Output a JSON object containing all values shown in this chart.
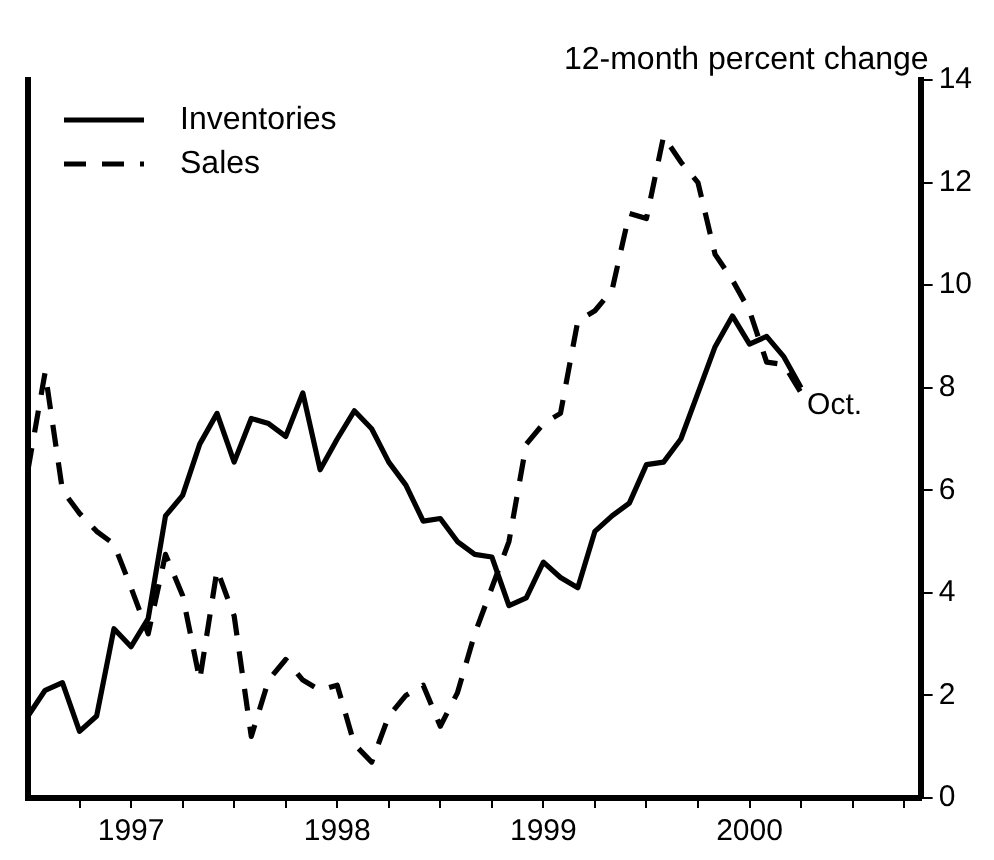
{
  "chart_data": {
    "type": "line",
    "ylabel": "12-month percent change",
    "x": [
      1997.0,
      1997.083,
      1997.167,
      1997.25,
      1997.333,
      1997.417,
      1997.5,
      1997.583,
      1997.667,
      1997.75,
      1997.833,
      1997.917,
      1998.0,
      1998.083,
      1998.167,
      1998.25,
      1998.333,
      1998.417,
      1998.5,
      1998.583,
      1998.667,
      1998.75,
      1998.833,
      1998.917,
      1999.0,
      1999.083,
      1999.167,
      1999.25,
      1999.333,
      1999.417,
      1999.5,
      1999.583,
      1999.667,
      1999.75,
      1999.833,
      1999.917,
      2000.0,
      2000.083,
      2000.167,
      2000.25,
      2000.333,
      2000.417,
      2000.5,
      2000.583,
      2000.667,
      2000.75
    ],
    "series": [
      {
        "name": "Inventories",
        "color": "#000000",
        "line_style": "solid",
        "values": [
          1.6,
          2.1,
          2.25,
          1.3,
          1.6,
          3.3,
          2.95,
          3.5,
          5.5,
          5.9,
          6.9,
          7.5,
          6.55,
          7.4,
          7.3,
          7.05,
          7.9,
          6.4,
          7.0,
          7.55,
          7.2,
          6.55,
          6.1,
          5.4,
          5.45,
          5.0,
          4.75,
          4.7,
          3.75,
          3.9,
          4.6,
          4.3,
          4.1,
          5.2,
          5.5,
          5.75,
          6.5,
          6.55,
          7.0,
          7.9,
          8.8,
          9.4,
          8.85,
          9.0,
          8.6,
          8.0
        ]
      },
      {
        "name": "Sales",
        "color": "#000000",
        "line_style": "dashed",
        "values": [
          6.4,
          8.3,
          6.0,
          5.55,
          5.2,
          4.95,
          4.1,
          3.2,
          4.75,
          3.95,
          2.3,
          4.45,
          3.55,
          1.2,
          2.3,
          2.7,
          2.3,
          2.1,
          2.2,
          1.05,
          0.7,
          1.6,
          2.0,
          2.2,
          1.4,
          2.05,
          3.2,
          4.1,
          5.0,
          6.9,
          7.3,
          7.5,
          9.3,
          9.5,
          9.9,
          11.4,
          11.3,
          12.9,
          12.4,
          12.0,
          10.6,
          10.1,
          9.5,
          8.5,
          8.45,
          7.9
        ]
      }
    ],
    "xlim": [
      1997,
      2001.33
    ],
    "xticks": [
      {
        "value": 1997.25,
        "label": null
      },
      {
        "value": 1997.5,
        "label": "1997"
      },
      {
        "value": 1997.75,
        "label": null
      },
      {
        "value": 1998.0,
        "label": null
      },
      {
        "value": 1998.25,
        "label": null
      },
      {
        "value": 1998.5,
        "label": "1998"
      },
      {
        "value": 1998.75,
        "label": null
      },
      {
        "value": 1999.0,
        "label": null
      },
      {
        "value": 1999.25,
        "label": null
      },
      {
        "value": 1999.5,
        "label": "1999"
      },
      {
        "value": 1999.75,
        "label": null
      },
      {
        "value": 2000.0,
        "label": null
      },
      {
        "value": 2000.25,
        "label": null
      },
      {
        "value": 2000.5,
        "label": "2000"
      },
      {
        "value": 2000.75,
        "label": null
      },
      {
        "value": 2001.0,
        "label": null
      },
      {
        "value": 2001.25,
        "label": null
      }
    ],
    "ylim": [
      0,
      14
    ],
    "yticks": [
      0,
      2,
      4,
      6,
      8,
      10,
      12,
      14
    ],
    "annotations": [
      {
        "text": "Oct.",
        "x": 2000.75,
        "y": 8.0
      }
    ],
    "grid": false,
    "legend": "top left",
    "marker": "none"
  }
}
